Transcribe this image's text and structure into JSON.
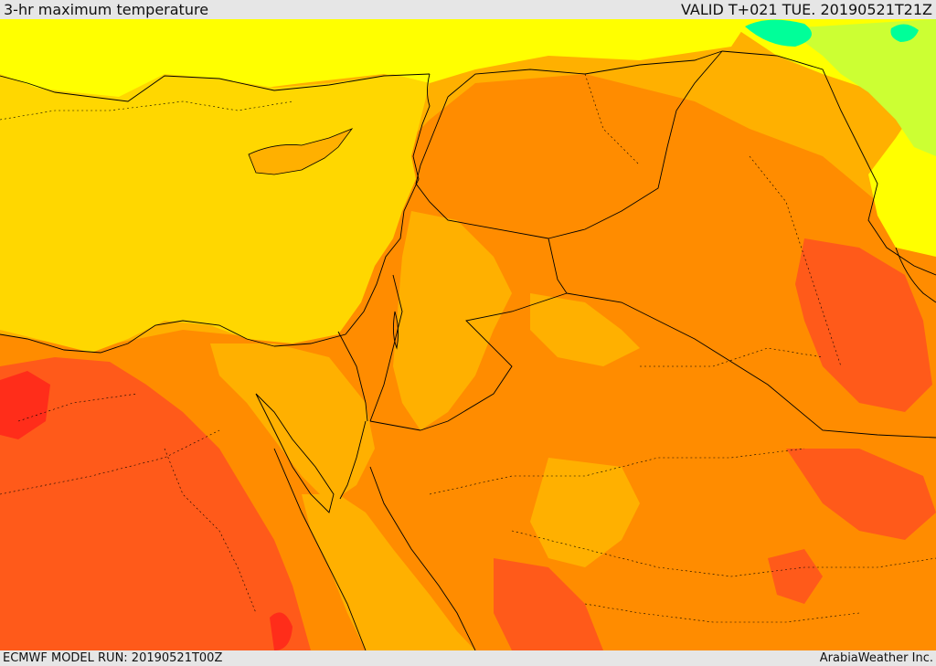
{
  "header": {
    "title": "3-hr maximum temperature",
    "valid": "VALID T+021 TUE. 20190521T21Z"
  },
  "footer": {
    "model_run": "ECMWF MODEL RUN: 20190521T00Z",
    "credit": "ArabiaWeather Inc."
  },
  "palette": {
    "sea": "#ffd700",
    "land_warm": "#ff8c00",
    "land_mild": "#ffb000",
    "land_cool": "#ffff00",
    "land_cooler": "#ccff33",
    "land_cold": "#00ff99",
    "land_hot": "#ff5a1a",
    "land_hottest": "#ff2d1a",
    "border": "#000000"
  }
}
